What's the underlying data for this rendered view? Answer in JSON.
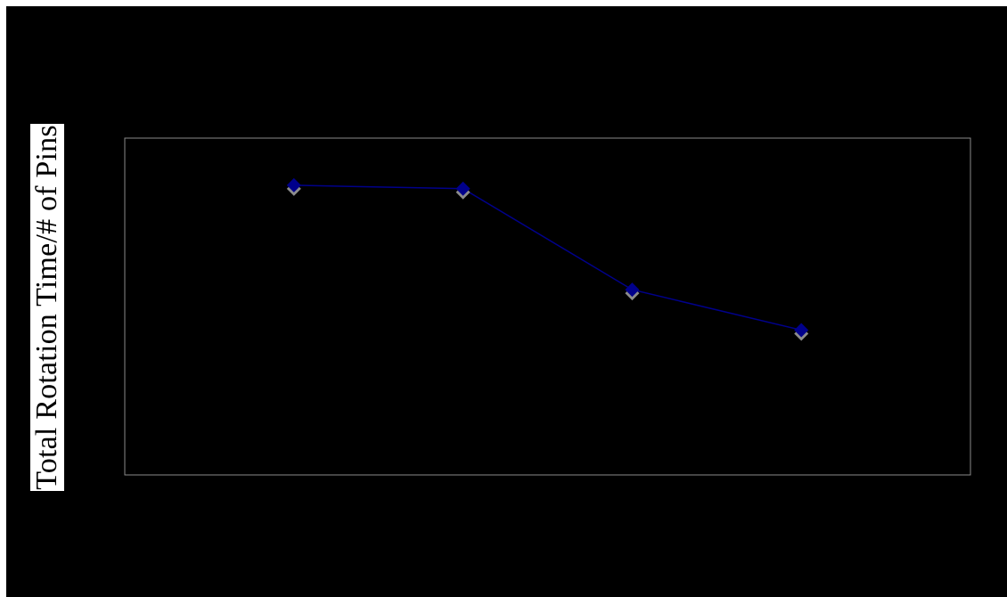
{
  "chart_data": {
    "type": "line",
    "title": "",
    "xlabel": "",
    "ylabel": "Total Rotation Time/# of Pins",
    "grid": false,
    "legend": "none",
    "x": [
      1,
      2,
      3,
      4
    ],
    "series": [
      {
        "values": [
          86,
          85,
          55,
          43
        ],
        "color": "#00008b"
      }
    ],
    "xlim": [
      0,
      5
    ],
    "ylim": [
      0,
      100
    ]
  }
}
